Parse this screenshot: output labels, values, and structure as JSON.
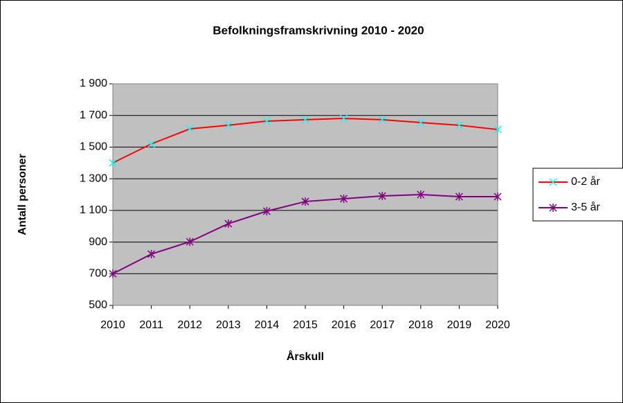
{
  "chart_data": {
    "type": "line",
    "title": "Befolkningsframskrivning 2010 - 2020",
    "x_label": "Årskull",
    "y_label": "Antall personer",
    "categories": [
      "2010",
      "2011",
      "2012",
      "2013",
      "2014",
      "2015",
      "2016",
      "2017",
      "2018",
      "2019",
      "2020"
    ],
    "series": [
      {
        "name": "0-2 år",
        "color": "#ff0000",
        "marker_color": "#00ffff",
        "marker": "x",
        "values": [
          1400,
          1520,
          1615,
          1638,
          1664,
          1673,
          1681,
          1673,
          1655,
          1638,
          1611
        ]
      },
      {
        "name": "3-5 år",
        "color": "#800080",
        "marker_color": "#800080",
        "marker": "asterisk",
        "values": [
          700,
          824,
          902,
          1016,
          1095,
          1156,
          1174,
          1191,
          1200,
          1187,
          1187
        ]
      }
    ],
    "ylim": [
      500,
      1900
    ],
    "yticks": [
      500,
      700,
      900,
      {
        "value": 1100,
        "label": "1 100"
      },
      {
        "value": 1300,
        "label": "1 300"
      },
      {
        "value": 1500,
        "label": "1 500"
      },
      {
        "value": 1700,
        "label": "1 700"
      },
      {
        "value": 1900,
        "label": "1 900"
      }
    ],
    "grid": true,
    "legend": "right",
    "plot_background": "#c0c0c0"
  }
}
